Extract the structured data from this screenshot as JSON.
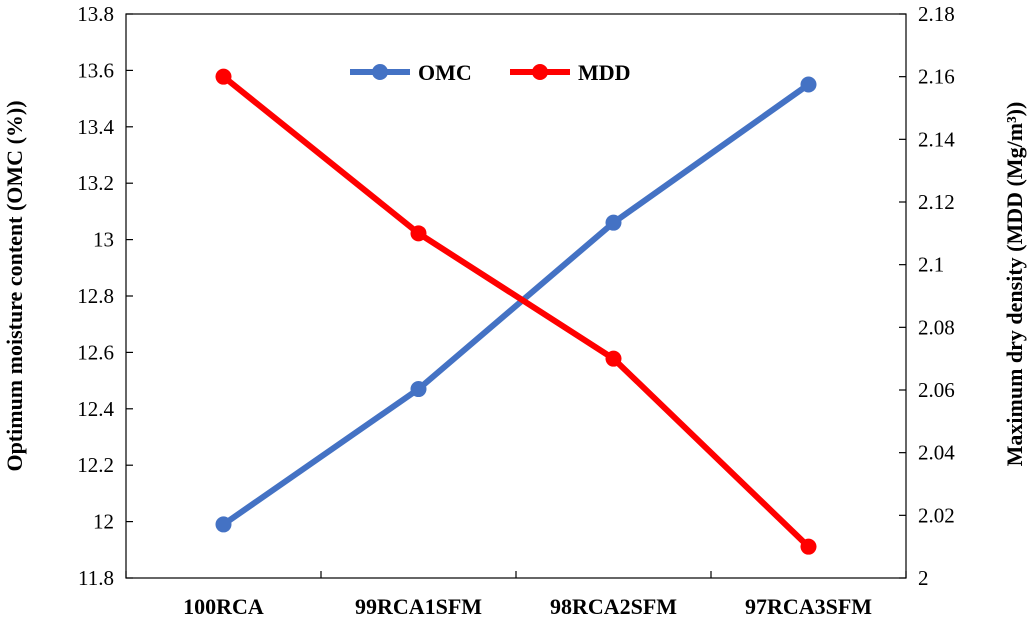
{
  "chart_data": {
    "type": "line",
    "categories": [
      "100RCA",
      "99RCA1SFM",
      "98RCA2SFM",
      "97RCA3SFM"
    ],
    "series": [
      {
        "name": "OMC",
        "axis": "left",
        "color": "#4472C4",
        "values": [
          11.99,
          12.47,
          13.06,
          13.55
        ]
      },
      {
        "name": "MDD",
        "axis": "right",
        "color": "#FF0000",
        "values": [
          2.16,
          2.11,
          2.07,
          2.01
        ]
      }
    ],
    "ylabel_left": "Optimum moisture content (OMC (%))",
    "ylabel_right": "Maximum dry density (MDD (Mg/m³))",
    "ylim_left": [
      11.8,
      13.8
    ],
    "ylim_right": [
      2.0,
      2.18
    ],
    "yticks_left": [
      "11.8",
      "12",
      "12.2",
      "12.4",
      "12.6",
      "12.8",
      "13",
      "13.2",
      "13.4",
      "13.6",
      "13.8"
    ],
    "yticks_right": [
      "2",
      "2.02",
      "2.04",
      "2.06",
      "2.08",
      "2.1",
      "2.12",
      "2.14",
      "2.16",
      "2.18"
    ],
    "grid": false,
    "legend_position": "top-center"
  }
}
